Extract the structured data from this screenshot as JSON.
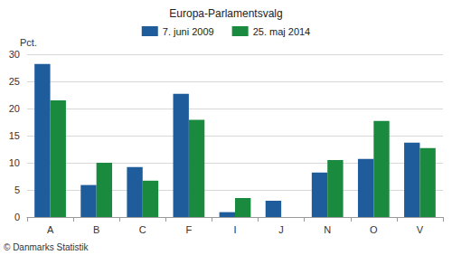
{
  "chart_data": {
    "type": "bar",
    "title": "Europa-Parlamentsvalg",
    "y_label": "Pct.",
    "annotation": "© Danmarks Statistik",
    "categories": [
      "A",
      "B",
      "C",
      "F",
      "I",
      "J",
      "N",
      "O",
      "V"
    ],
    "series": [
      {
        "name": "7. juni 2009",
        "color": "#1f5c9c",
        "values": [
          28.2,
          5.9,
          9.2,
          22.7,
          0.9,
          3.0,
          8.2,
          10.7,
          13.7
        ]
      },
      {
        "name": "25. maj 2014",
        "color": "#1a8a3e",
        "values": [
          21.5,
          10.0,
          6.7,
          17.9,
          3.5,
          null,
          10.5,
          17.7,
          12.7
        ]
      }
    ],
    "ylim": [
      0,
      30
    ],
    "yticks": [
      0,
      5,
      10,
      15,
      20,
      25,
      30
    ],
    "grid": true,
    "legend": "top"
  }
}
